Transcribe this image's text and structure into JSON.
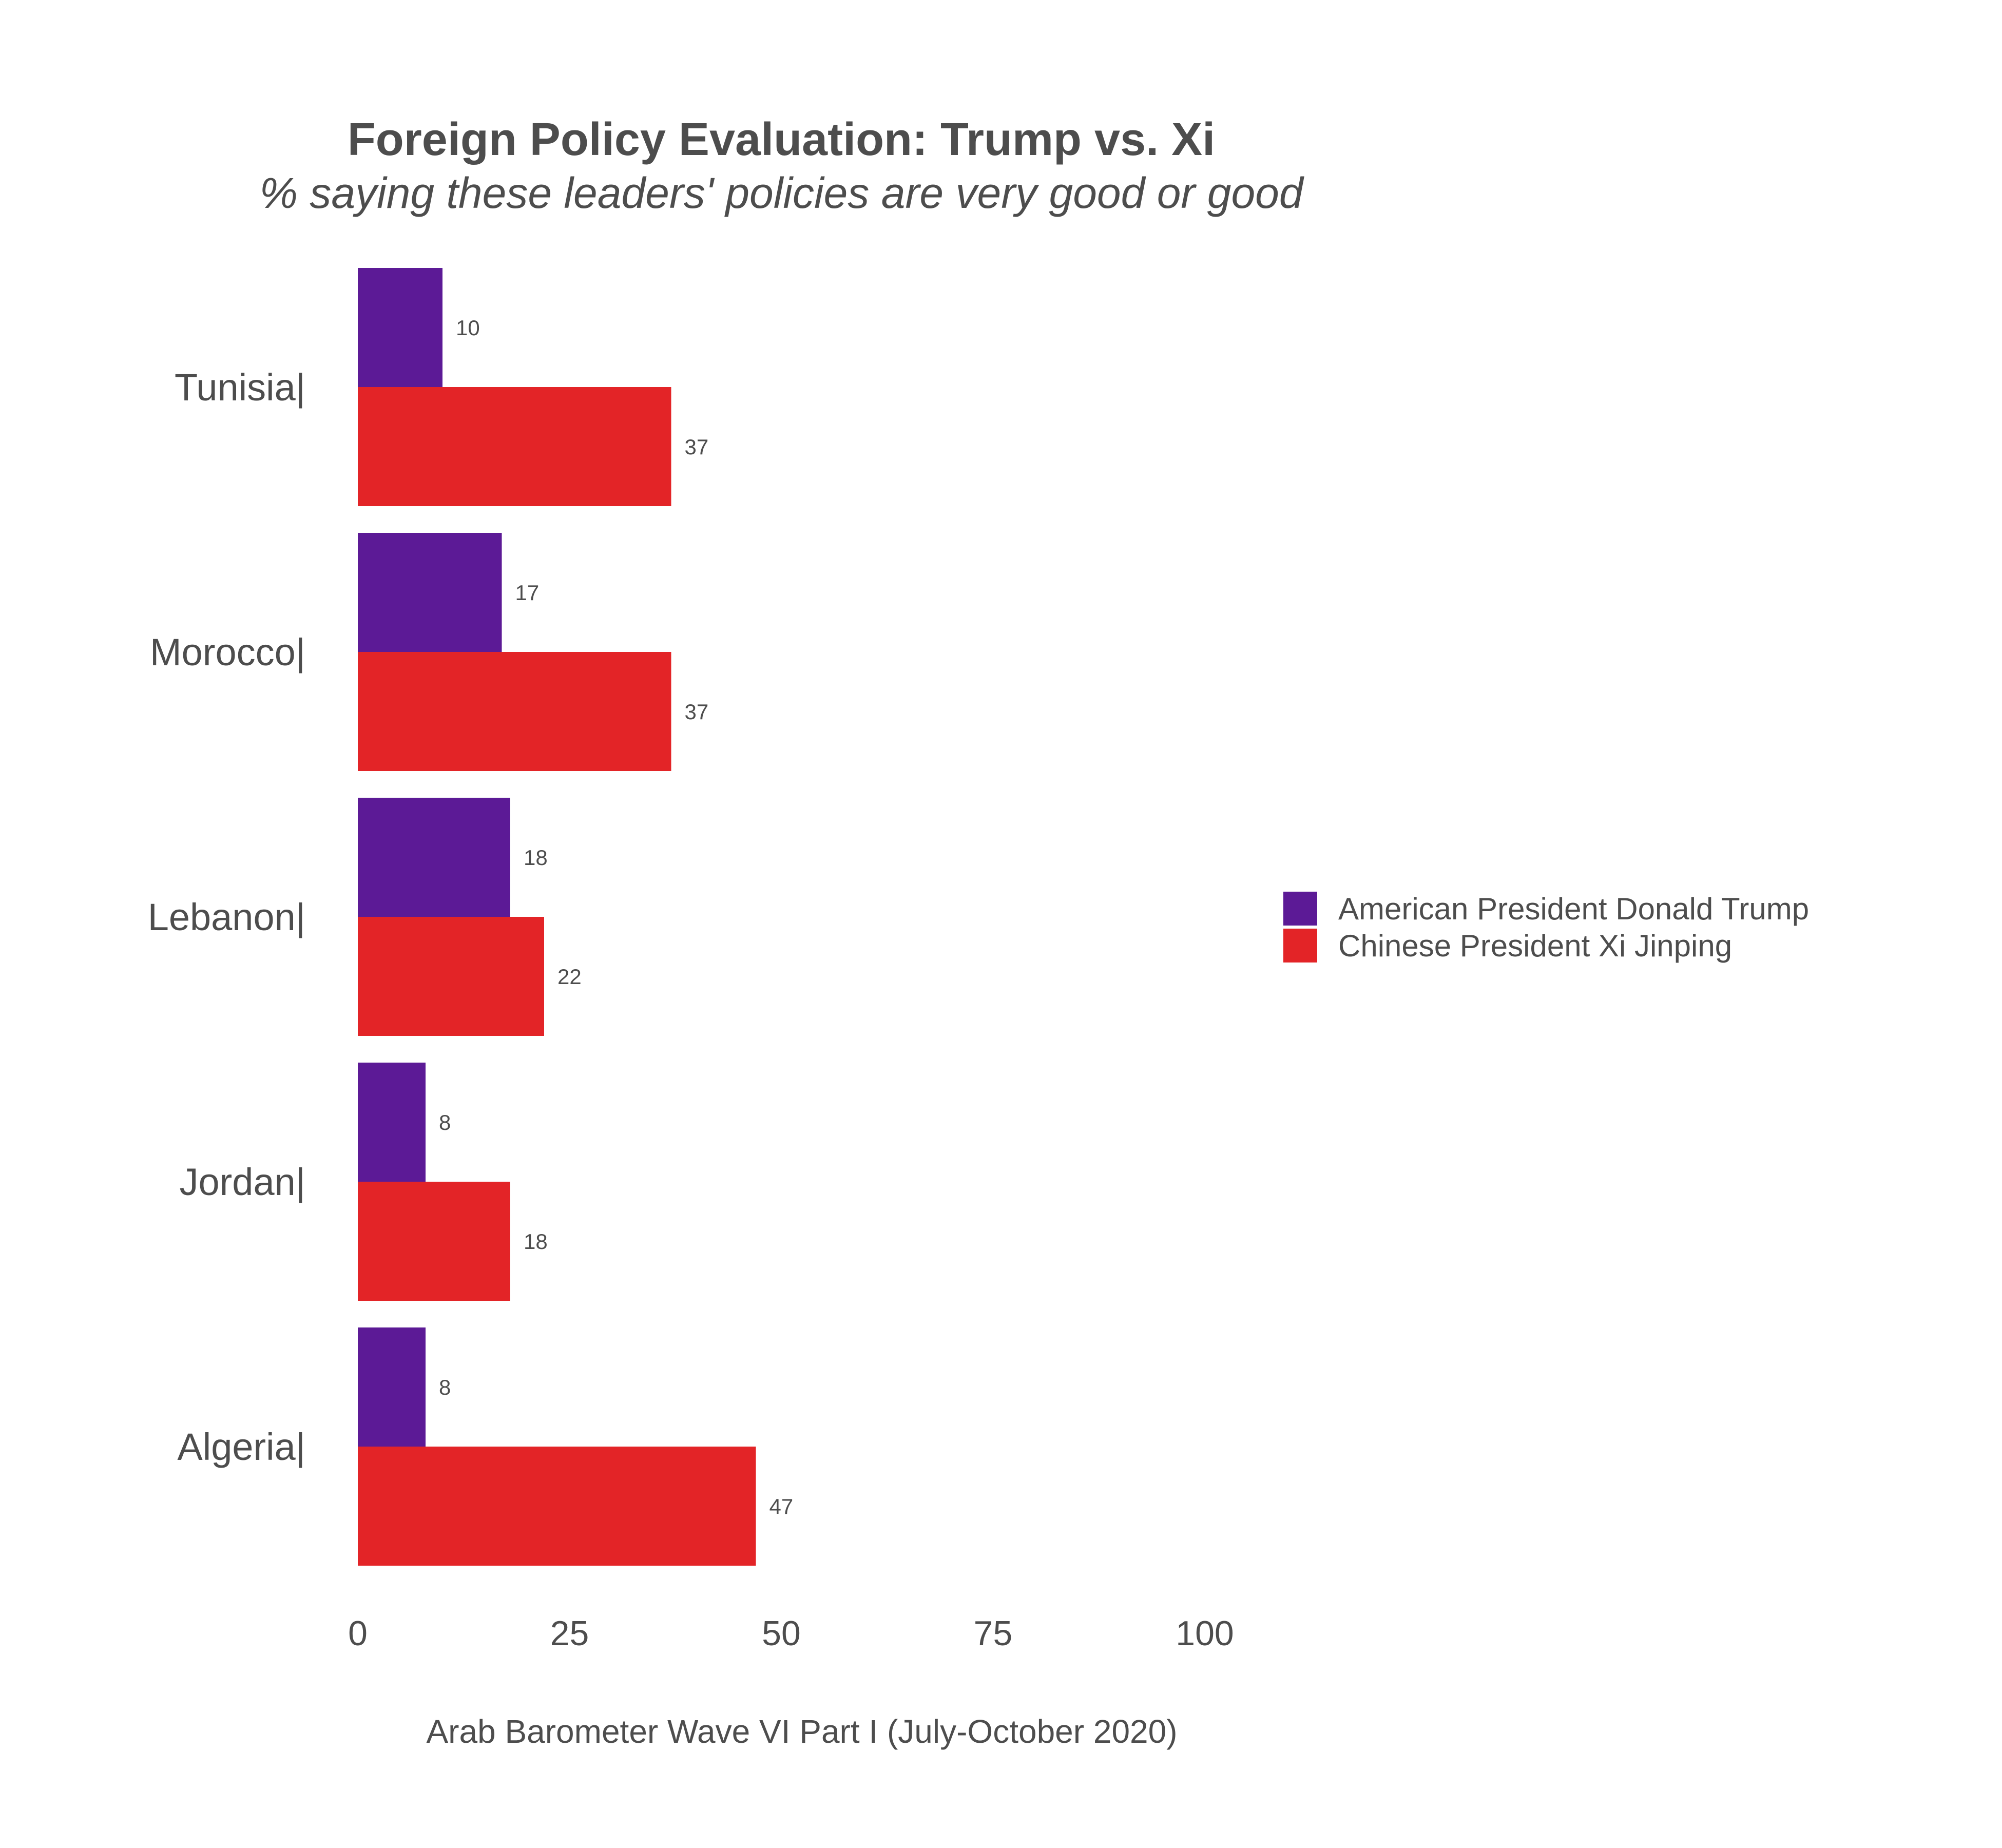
{
  "chart_data": {
    "type": "bar",
    "orientation": "horizontal",
    "title": "Foreign Policy Evaluation: Trump vs. Xi",
    "subtitle": "% saying these leaders' policies are very good or good",
    "caption": "Arab Barometer Wave VI Part I (July-October 2020)",
    "categories": [
      "Tunisia|",
      "Morocco|",
      "Lebanon|",
      "Jordan|",
      "Algeria|"
    ],
    "series": [
      {
        "name": "American President Donald Trump",
        "color": "#5c1a96",
        "values": [
          10,
          17,
          18,
          8,
          8
        ]
      },
      {
        "name": "Chinese President Xi Jinping",
        "color": "#e32427",
        "values": [
          37,
          37,
          22,
          18,
          47
        ]
      }
    ],
    "xlim": [
      0,
      100
    ],
    "xticks": [
      "0",
      "25",
      "50",
      "75",
      "100"
    ],
    "xtick_values": [
      0,
      25,
      50,
      75,
      100
    ],
    "grid": false,
    "legend_position": "right"
  }
}
